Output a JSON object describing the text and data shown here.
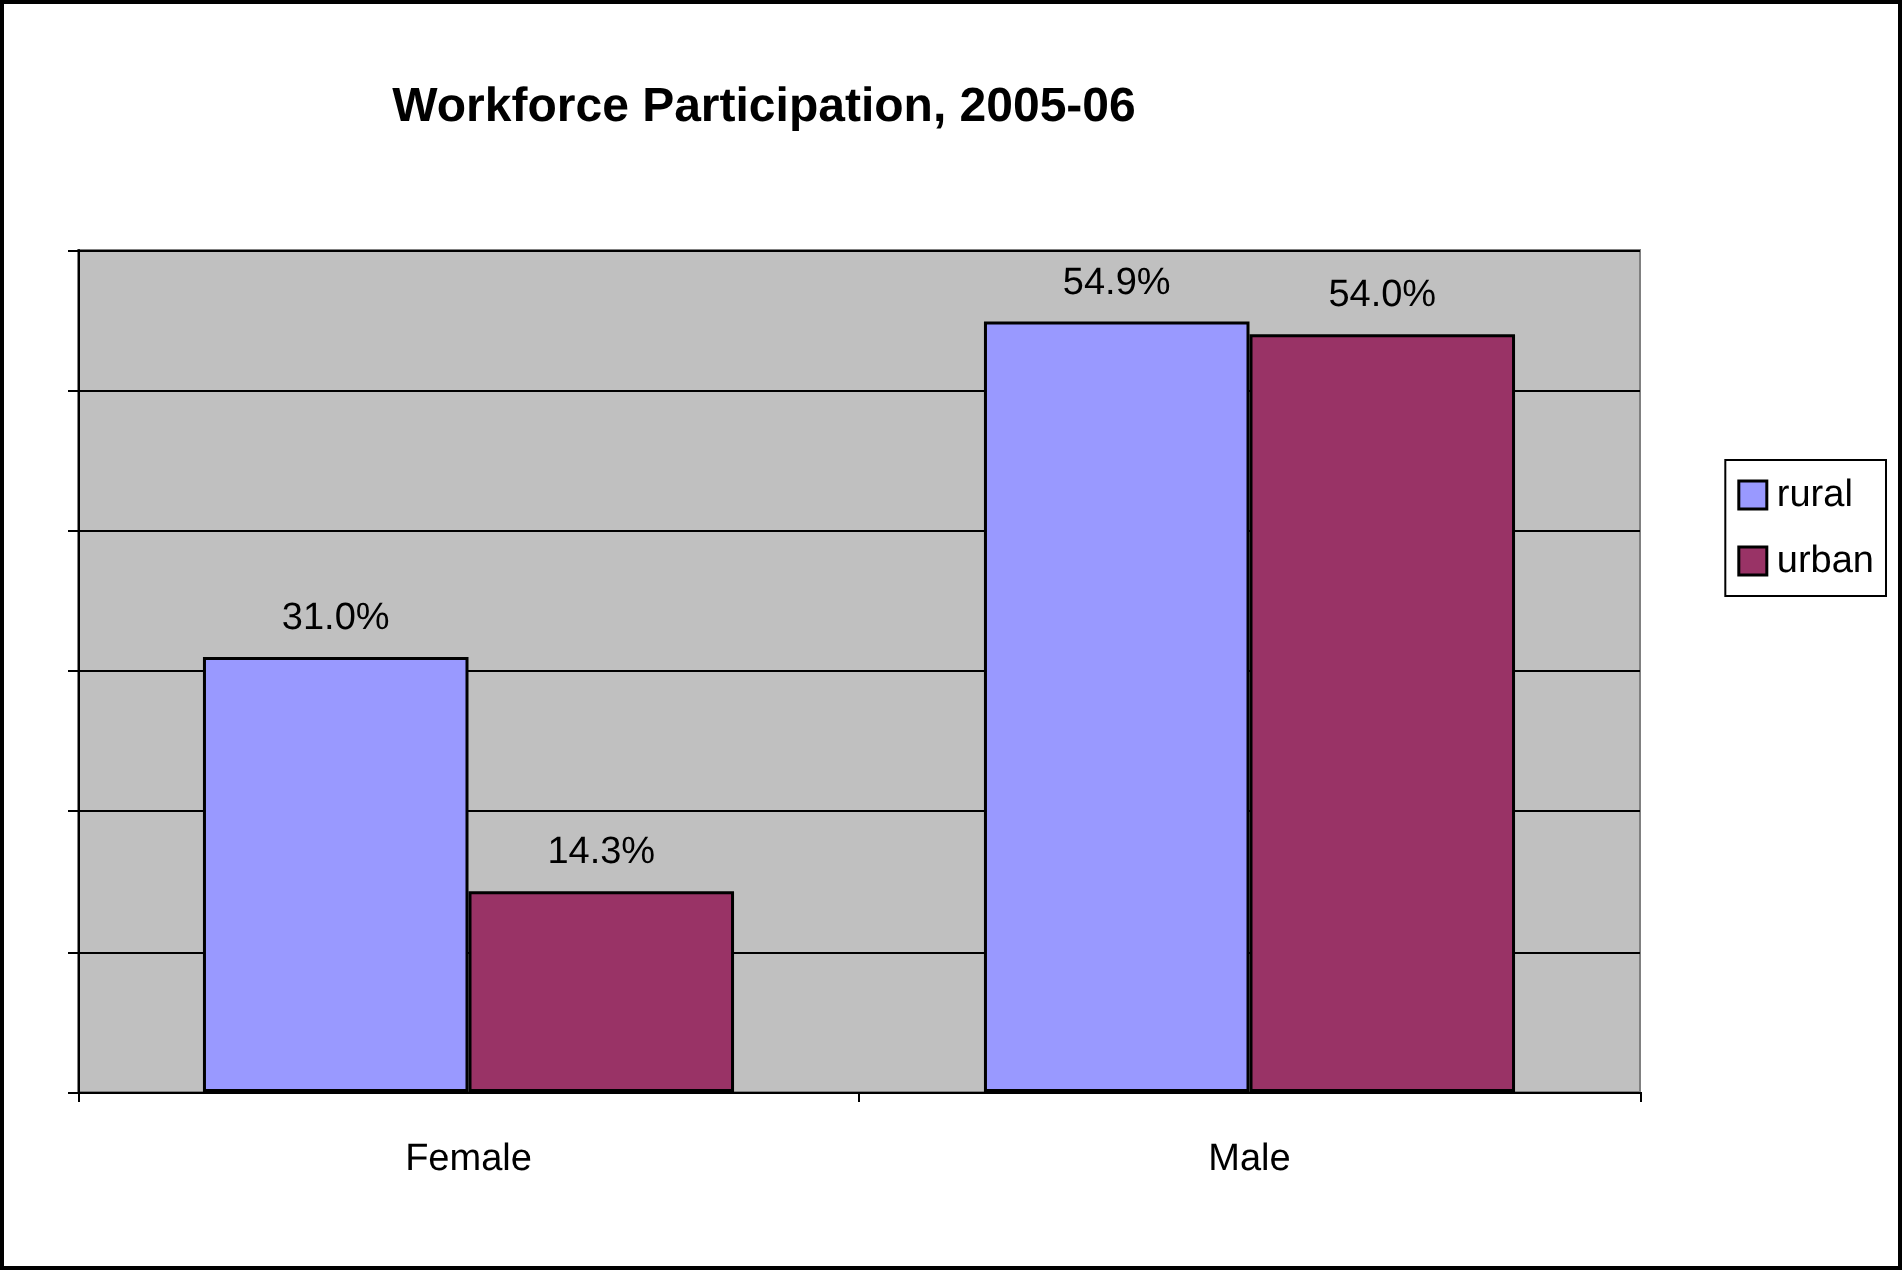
{
  "chart_data": {
    "type": "bar",
    "title": "Workforce Participation, 2005-06",
    "categories": [
      "Female",
      "Male"
    ],
    "series": [
      {
        "name": "rural",
        "color": "#9999ff",
        "values": [
          31.0,
          54.9
        ],
        "value_labels": [
          "31.0%",
          "54.9%"
        ]
      },
      {
        "name": "urban",
        "color": "#993366",
        "values": [
          14.3,
          54.0
        ],
        "value_labels": [
          "14.3%",
          "54.0%"
        ]
      }
    ],
    "ylim": [
      0,
      60
    ],
    "yticks": [
      {
        "value": 0,
        "label": null
      },
      {
        "value": 10,
        "label": null
      },
      {
        "value": 20,
        "label": null
      },
      {
        "value": 30,
        "label": null
      },
      {
        "value": 40,
        "label": null
      },
      {
        "value": 50,
        "label": null
      },
      {
        "value": 60,
        "label": null
      }
    ],
    "grid": "y",
    "legend": "right",
    "tick_labels": "x"
  }
}
